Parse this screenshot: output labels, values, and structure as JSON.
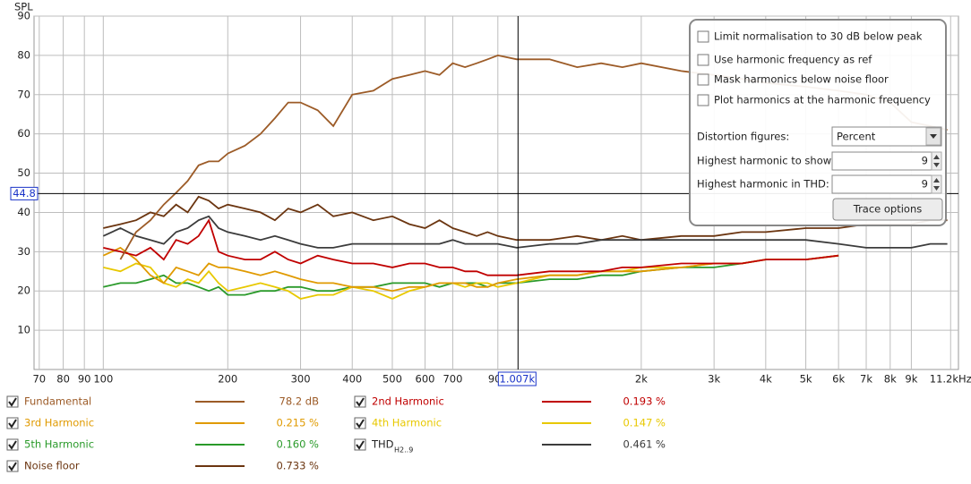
{
  "chart_data": {
    "type": "line",
    "y_label": "SPL",
    "xscale": "log",
    "grid": true,
    "xlim": [
      68,
      11700
    ],
    "ylim": [
      0,
      90
    ],
    "yticks": [
      10,
      20,
      30,
      40,
      50,
      60,
      70,
      80,
      90
    ],
    "xticks": [
      70,
      80,
      90,
      100,
      200,
      300,
      400,
      500,
      600,
      700,
      900,
      {
        "value": 2000,
        "label": "2k"
      },
      {
        "value": 3000,
        "label": "3k"
      },
      {
        "value": 4000,
        "label": "4k"
      },
      {
        "value": 5000,
        "label": "5k"
      },
      {
        "value": 6000,
        "label": "6k"
      },
      {
        "value": 7000,
        "label": "7k"
      },
      {
        "value": 8000,
        "label": "8k"
      },
      {
        "value": 9000,
        "label": "9k"
      },
      {
        "value": 11200,
        "label": "11.2kHz"
      }
    ],
    "cursor": {
      "x": 1007,
      "x_label": "1.007k",
      "y": 44.8
    },
    "x": [
      100,
      110,
      120,
      130,
      140,
      150,
      160,
      170,
      180,
      190,
      200,
      220,
      240,
      260,
      280,
      300,
      330,
      360,
      400,
      450,
      500,
      550,
      600,
      650,
      700,
      750,
      800,
      850,
      900,
      1000,
      1200,
      1400,
      1600,
      1800,
      2000,
      2500,
      3000,
      3500,
      4000,
      5000,
      6000,
      7000,
      8000,
      9000,
      10000,
      11000
    ],
    "series": [
      {
        "name": "Fundamental",
        "color": "#9c5b27",
        "reading": 78.2,
        "reading_label": "78.2 dB",
        "values": [
          null,
          28,
          35,
          38,
          42,
          45,
          48,
          52,
          53,
          53,
          55,
          57,
          60,
          64,
          68,
          68,
          66,
          62,
          70,
          71,
          74,
          75,
          76,
          75,
          78,
          77,
          78,
          79,
          80,
          79,
          79,
          77,
          78,
          77,
          78,
          76,
          75,
          74,
          73,
          72,
          71,
          70,
          68,
          63,
          62,
          61
        ]
      },
      {
        "name": "2nd Harmonic",
        "color": "#c00000",
        "reading": 0.193,
        "reading_label": "0.193 %",
        "values": [
          31,
          30,
          29,
          31,
          28,
          33,
          32,
          34,
          38,
          30,
          29,
          28,
          28,
          30,
          28,
          27,
          29,
          28,
          27,
          27,
          26,
          27,
          27,
          26,
          26,
          25,
          25,
          24,
          24,
          24,
          25,
          25,
          25,
          26,
          26,
          27,
          27,
          27,
          28,
          28,
          29,
          null,
          null,
          null,
          null,
          null
        ]
      },
      {
        "name": "3rd Harmonic",
        "color": "#e09a00",
        "reading": 0.215,
        "reading_label": "0.215 %",
        "values": [
          29,
          31,
          28,
          24,
          22,
          26,
          25,
          24,
          27,
          26,
          26,
          25,
          24,
          25,
          24,
          23,
          22,
          22,
          21,
          21,
          20,
          21,
          21,
          22,
          22,
          22,
          21,
          21,
          22,
          23,
          24,
          24,
          25,
          25,
          25,
          26,
          27,
          27,
          28,
          28,
          29,
          null,
          null,
          null,
          null,
          null
        ]
      },
      {
        "name": "4th Harmonic",
        "color": "#e8c800",
        "reading": 0.147,
        "reading_label": "0.147 %",
        "values": [
          26,
          25,
          27,
          26,
          22,
          21,
          23,
          22,
          25,
          22,
          20,
          21,
          22,
          21,
          20,
          18,
          19,
          19,
          21,
          20,
          18,
          20,
          21,
          22,
          22,
          21,
          22,
          22,
          21,
          22,
          24,
          24,
          25,
          25,
          26,
          26,
          27,
          27,
          28,
          28,
          29,
          null,
          null,
          null,
          null,
          null
        ]
      },
      {
        "name": "5th Harmonic",
        "color": "#2a9a2a",
        "reading": 0.16,
        "reading_label": "0.160 %",
        "values": [
          21,
          22,
          22,
          23,
          24,
          22,
          22,
          21,
          20,
          21,
          19,
          19,
          20,
          20,
          21,
          21,
          20,
          20,
          21,
          21,
          22,
          22,
          22,
          21,
          22,
          22,
          22,
          21,
          22,
          22,
          23,
          23,
          24,
          24,
          25,
          26,
          26,
          27,
          28,
          28,
          29,
          null,
          null,
          null,
          null,
          null
        ]
      },
      {
        "name": "THD",
        "name_sub": "H2..9",
        "color": "#3c3c3c",
        "reading": 0.461,
        "reading_label": "0.461 %",
        "values": [
          34,
          36,
          34,
          33,
          32,
          35,
          36,
          38,
          39,
          36,
          35,
          34,
          33,
          34,
          33,
          32,
          31,
          31,
          32,
          32,
          32,
          32,
          32,
          32,
          33,
          32,
          32,
          32,
          32,
          31,
          32,
          32,
          33,
          33,
          33,
          33,
          33,
          33,
          33,
          33,
          32,
          31,
          31,
          31,
          32,
          32
        ]
      },
      {
        "name": "Noise floor",
        "color": "#6b3510",
        "reading": 0.733,
        "reading_label": "0.733 %",
        "values": [
          36,
          37,
          38,
          40,
          39,
          42,
          40,
          44,
          43,
          41,
          42,
          41,
          40,
          38,
          41,
          40,
          42,
          39,
          40,
          38,
          39,
          37,
          36,
          38,
          36,
          35,
          34,
          35,
          34,
          33,
          33,
          34,
          33,
          34,
          33,
          34,
          34,
          35,
          35,
          36,
          36,
          37,
          37,
          37,
          38,
          38
        ]
      }
    ]
  },
  "panel": {
    "checks": [
      "Limit normalisation to 30 dB below peak",
      "Use harmonic frequency as ref",
      "Mask harmonics below noise floor",
      "Plot harmonics at the harmonic frequency"
    ],
    "distortion_label": "Distortion figures:",
    "distortion_value": "Percent",
    "show_label": "Highest harmonic to show:",
    "show_value": 9,
    "thd_label": "Highest harmonic in THD:",
    "thd_value": 9,
    "button": "Trace options"
  }
}
